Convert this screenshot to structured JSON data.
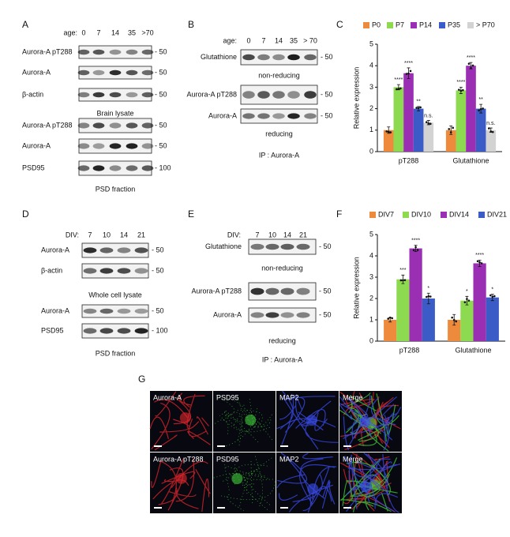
{
  "panels": {
    "A": {
      "label": "A",
      "header": "age:",
      "lanes": [
        "0",
        "7",
        "14",
        "35",
        ">70"
      ],
      "groups": [
        {
          "rows": [
            {
              "name": "Aurora-A pT288",
              "marker": "- 50"
            },
            {
              "name": "Aurora-A",
              "marker": "- 50"
            },
            {
              "name": "β-actin",
              "marker": "- 50"
            }
          ],
          "caption": "Brain lysate"
        },
        {
          "rows": [
            {
              "name": "Aurora-A pT288",
              "marker": "- 50"
            },
            {
              "name": "Aurora-A",
              "marker": "- 50"
            },
            {
              "name": "PSD95",
              "marker": "- 100"
            }
          ],
          "caption": "PSD fraction"
        }
      ]
    },
    "B": {
      "label": "B",
      "header": "age:",
      "lanes": [
        "0",
        "7",
        "14",
        "35",
        "> 70"
      ],
      "groups": [
        {
          "rows": [
            {
              "name": "Glutathione",
              "marker": "- 50"
            }
          ],
          "caption": "non-reducing"
        },
        {
          "rows": [
            {
              "name": "Aurora-A pT288",
              "marker": "- 50"
            },
            {
              "name": "Aurora-A",
              "marker": "- 50"
            }
          ],
          "caption": "reducing"
        }
      ],
      "footer": "IP : Aurora-A"
    },
    "D": {
      "label": "D",
      "header": "DIV:",
      "lanes": [
        "7",
        "10",
        "14",
        "21"
      ],
      "groups": [
        {
          "rows": [
            {
              "name": "Aurora-A",
              "marker": "- 50"
            },
            {
              "name": "β-actin",
              "marker": "- 50"
            }
          ],
          "caption": "Whole cell  lysate"
        },
        {
          "rows": [
            {
              "name": "Aurora-A",
              "marker": "- 50"
            },
            {
              "name": "PSD95",
              "marker": "- 100"
            }
          ],
          "caption": "PSD fraction"
        }
      ]
    },
    "E": {
      "label": "E",
      "header": "DIV:",
      "lanes": [
        "7",
        "10",
        "14",
        "21"
      ],
      "groups": [
        {
          "rows": [
            {
              "name": "Glutathione",
              "marker": "- 50"
            }
          ],
          "caption": "non-reducing"
        },
        {
          "rows": [
            {
              "name": "Aurora-A pT288",
              "marker": "- 50"
            },
            {
              "name": "Aurora-A",
              "marker": "- 50"
            }
          ],
          "caption": "reducing"
        }
      ],
      "footer": "IP : Aurora-A"
    },
    "G": {
      "label": "G",
      "images": [
        [
          "Aurora-A",
          "PSD95",
          "MAP2",
          "Merge"
        ],
        [
          "Aurora-A pT288",
          "PSD95",
          "MAP2",
          "Merge"
        ]
      ]
    }
  },
  "chart_data": [
    {
      "type": "bar",
      "label": "C",
      "y_label": "Relative expression",
      "categories": [
        "pT288",
        "Glutathione"
      ],
      "ylim": [
        0,
        5
      ],
      "yticks": [
        0,
        1,
        2,
        3,
        4,
        5
      ],
      "series": [
        {
          "name": "P0",
          "color": "#ee8a3c",
          "values": [
            1.0,
            1.0
          ],
          "errors": [
            0.15,
            0.2
          ]
        },
        {
          "name": "P7",
          "color": "#8dd94f",
          "values": [
            3.0,
            2.85
          ],
          "errors": [
            0.12,
            0.15
          ],
          "significance": [
            "****",
            "****"
          ]
        },
        {
          "name": "P14",
          "color": "#9a2fb4",
          "values": [
            3.65,
            4.0
          ],
          "errors": [
            0.25,
            0.15
          ],
          "significance": [
            "****",
            "****"
          ]
        },
        {
          "name": "P35",
          "color": "#3b5bc7",
          "values": [
            2.0,
            2.0
          ],
          "errors": [
            0.1,
            0.2
          ],
          "significance": [
            "**",
            "**"
          ]
        },
        {
          "name": "> P70",
          "color": "#d3d3d3",
          "values": [
            1.35,
            1.0
          ],
          "errors": [
            0.1,
            0.1
          ],
          "significance": [
            "n.s.",
            "n.s."
          ]
        }
      ]
    },
    {
      "type": "bar",
      "label": "F",
      "y_label": "Relative expression",
      "categories": [
        "pT288",
        "Glutathione"
      ],
      "ylim": [
        0,
        5
      ],
      "yticks": [
        0,
        1,
        2,
        3,
        4,
        5
      ],
      "series": [
        {
          "name": "DIV7",
          "color": "#ee8a3c",
          "values": [
            1.0,
            1.0
          ],
          "errors": [
            0.1,
            0.25
          ]
        },
        {
          "name": "DIV10",
          "color": "#8dd94f",
          "values": [
            2.9,
            1.9
          ],
          "errors": [
            0.2,
            0.2
          ],
          "significance": [
            "***",
            "*"
          ]
        },
        {
          "name": "DIV14",
          "color": "#9a2fb4",
          "values": [
            4.35,
            3.65
          ],
          "errors": [
            0.15,
            0.15
          ],
          "significance": [
            "****",
            "****"
          ]
        },
        {
          "name": "DIV21",
          "color": "#3b5bc7",
          "values": [
            2.0,
            2.05
          ],
          "errors": [
            0.25,
            0.15
          ],
          "significance": [
            "*",
            "*"
          ]
        }
      ]
    }
  ]
}
